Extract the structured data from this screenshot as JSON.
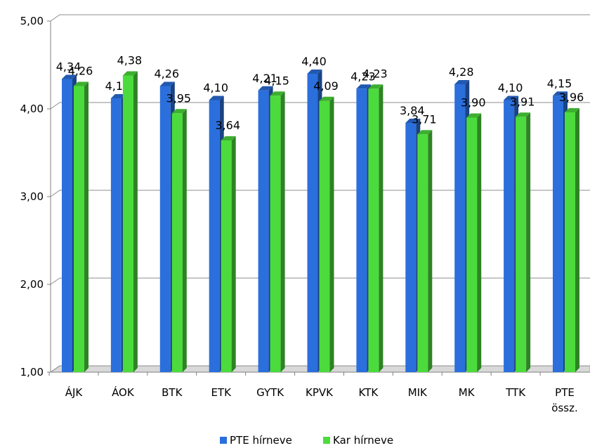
{
  "chart_data": {
    "type": "bar3d",
    "categories": [
      "ÁJK",
      "ÁOK",
      "BTK",
      "ETK",
      "GYTK",
      "KPVK",
      "KTK",
      "MIK",
      "MK",
      "TTK",
      "PTE össz."
    ],
    "series": [
      {
        "name": "PTE hírneve",
        "color": "#2b6fdc",
        "values": [
          4.34,
          4.12,
          4.26,
          4.1,
          4.21,
          4.4,
          4.23,
          3.84,
          4.28,
          4.1,
          4.15
        ],
        "value_labels": [
          "4,34",
          "4,12",
          "4,26",
          "4,10",
          "4,21",
          "4,40",
          "4,23",
          "3,84",
          "4,28",
          "4,10",
          "4,15"
        ]
      },
      {
        "name": "Kar hírneve",
        "color": "#4cdb3c",
        "values": [
          4.26,
          4.38,
          3.95,
          3.64,
          4.15,
          4.09,
          4.23,
          3.71,
          3.9,
          3.91,
          3.96
        ],
        "value_labels": [
          "4,26",
          "4,38",
          "3,95",
          "3,64",
          "4,15",
          "4,09",
          "4,23",
          "3,71",
          "3,90",
          "3,91",
          "3,96"
        ]
      }
    ],
    "ylim": [
      1,
      5
    ],
    "yticks": [
      {
        "value": 1,
        "label": "1,00"
      },
      {
        "value": 2,
        "label": "2,00"
      },
      {
        "value": 3,
        "label": "3,00"
      },
      {
        "value": 4,
        "label": "4,00"
      },
      {
        "value": 5,
        "label": "5,00"
      }
    ],
    "grid": true,
    "legend": "bottom"
  }
}
